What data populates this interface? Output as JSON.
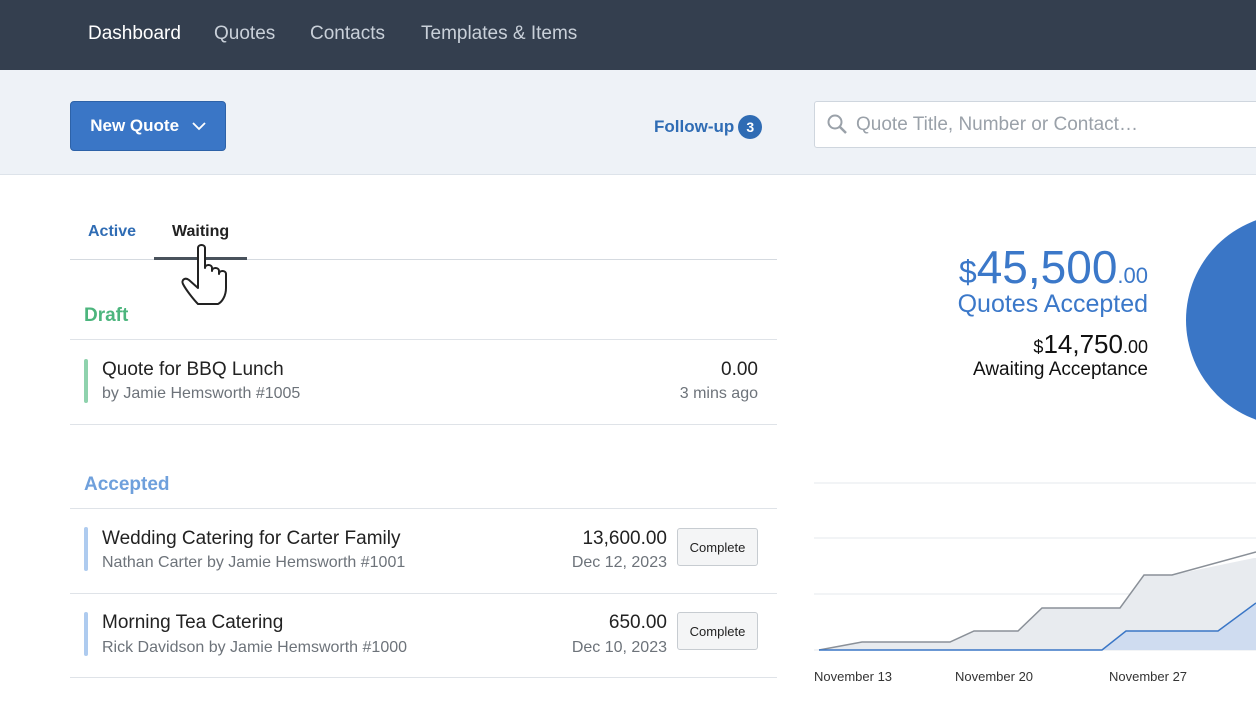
{
  "nav": {
    "items": [
      "Dashboard",
      "Quotes",
      "Contacts",
      "Templates & Items"
    ]
  },
  "toolbar": {
    "new_quote": "New Quote",
    "follow_up": {
      "label": "Follow-up",
      "count": "3"
    },
    "search_placeholder": "Quote Title, Number or Contact…"
  },
  "tabs": [
    "Active",
    "Waiting"
  ],
  "sections": [
    {
      "title": "Draft",
      "items": [
        {
          "title": "Quote for BBQ Lunch",
          "subtitle": "by Jamie Hemsworth #1005",
          "amount": "0.00",
          "date": "3 mins ago"
        }
      ]
    },
    {
      "title": "Accepted",
      "items": [
        {
          "title": "Wedding Catering for Carter Family",
          "subtitle": "Nathan Carter by Jamie Hemsworth #1001",
          "amount": "13,600.00",
          "date": "Dec 12, 2023",
          "action": "Complete"
        },
        {
          "title": "Morning Tea Catering",
          "subtitle": "Rick Davidson by Jamie Hemsworth #1000",
          "amount": "650.00",
          "date": "Dec 10, 2023",
          "action": "Complete"
        }
      ]
    }
  ],
  "summary": {
    "accepted": {
      "currency": "$",
      "whole": "45,500",
      "cents": ".00",
      "label": "Quotes Accepted"
    },
    "awaiting": {
      "currency": "$",
      "whole": "14,750",
      "cents": ".00",
      "label": "Awaiting Acceptance"
    }
  },
  "chart": {
    "x_labels": [
      "November 13",
      "November 20",
      "November 27"
    ]
  }
}
